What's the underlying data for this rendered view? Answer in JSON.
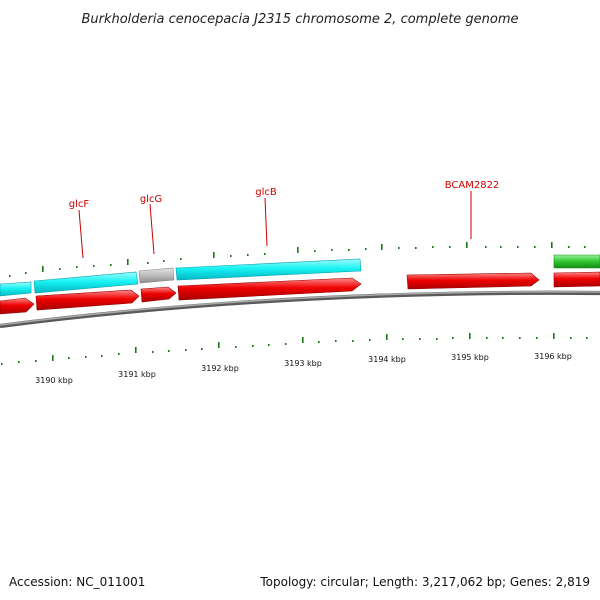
{
  "title": "Burkholderia cenocepacia J2315 chromosome 2, complete genome",
  "accession": "Accession: NC_011001",
  "topology": "Topology: circular; Length: 3,217,062 bp; Genes: 2,819",
  "colors": {
    "forward_cds": "#00ffff",
    "reverse_cds": "#ff0000",
    "other_feature": "#bdbdbd",
    "green_feature": "#33cc33",
    "backbone": "#888888",
    "ticks": "#1a7a1a",
    "label": "#cc0000"
  },
  "gene_labels": [
    "glcF",
    "glcG",
    "glcB",
    "BCAM2822"
  ],
  "kbp_labels": [
    "3190 kbp",
    "3191 kbp",
    "3192 kbp",
    "3193 kbp",
    "3194 kbp",
    "3195 kbp",
    "3196 kbp"
  ]
}
